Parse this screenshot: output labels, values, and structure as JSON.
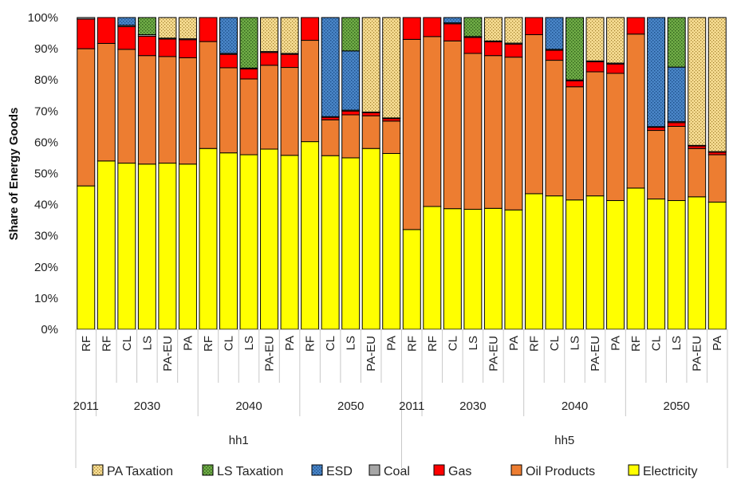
{
  "chart_data": {
    "type": "bar",
    "stacked": true,
    "title": "",
    "ylabel": "Share of Energy Goods",
    "xlabel": "",
    "ylim": [
      0,
      100
    ],
    "y_ticks": [
      "0%",
      "10%",
      "20%",
      "30%",
      "40%",
      "50%",
      "60%",
      "70%",
      "80%",
      "90%",
      "100%"
    ],
    "legend_position": "bottom",
    "groups": [
      {
        "label": "hh1",
        "years": [
          {
            "label": "2011",
            "scenarios": [
              "RF"
            ]
          },
          {
            "label": "2030",
            "scenarios": [
              "RF",
              "CL",
              "LS",
              "PA-EU",
              "PA"
            ]
          },
          {
            "label": "2040",
            "scenarios": [
              "RF",
              "CL",
              "LS",
              "PA-EU",
              "PA"
            ]
          },
          {
            "label": "2050",
            "scenarios": [
              "RF",
              "CL",
              "LS",
              "PA-EU",
              "PA"
            ]
          }
        ]
      },
      {
        "label": "hh5",
        "years": [
          {
            "label": "2011",
            "scenarios": [
              "RF"
            ]
          },
          {
            "label": "2030",
            "scenarios": [
              "RF",
              "CL",
              "LS",
              "PA-EU",
              "PA"
            ]
          },
          {
            "label": "2040",
            "scenarios": [
              "RF",
              "CL",
              "LS",
              "PA-EU",
              "PA"
            ]
          },
          {
            "label": "2050",
            "scenarios": [
              "RF",
              "CL",
              "LS",
              "PA-EU",
              "PA"
            ]
          }
        ]
      }
    ],
    "series": [
      {
        "name": "Electricity",
        "color": "#ffff00",
        "pattern": "solid",
        "values": [
          46,
          54,
          53.3,
          53,
          53.3,
          53,
          58,
          56.6,
          56,
          57.8,
          55.8,
          60.2,
          55.7,
          55,
          58,
          56.4,
          32,
          39.4,
          38.7,
          38.5,
          38.8,
          38.3,
          43.5,
          42.8,
          41.5,
          42.8,
          41.3,
          45.3,
          41.8,
          41.3,
          42.5,
          40.8
        ]
      },
      {
        "name": "Oil Products",
        "color": "#ed7d31",
        "pattern": "solid",
        "values": [
          44,
          37.7,
          36.5,
          34.8,
          34.2,
          34.1,
          34.3,
          27.3,
          24.3,
          26.9,
          28.2,
          32.5,
          11.5,
          13.8,
          10.5,
          10.4,
          61,
          54.5,
          53.8,
          50,
          49,
          49,
          51,
          43.5,
          36.3,
          39.8,
          40.8,
          49.4,
          22,
          23.8,
          15.5,
          15.2
        ]
      },
      {
        "name": "Gas",
        "color": "#ff0000",
        "pattern": "solid",
        "values": [
          9.5,
          8.3,
          7.3,
          6.2,
          5.6,
          5.8,
          7.7,
          4.3,
          3.2,
          4.1,
          4.2,
          7.3,
          0.8,
          1.2,
          1,
          0.8,
          7,
          6.1,
          5.5,
          5.1,
          4.4,
          4.2,
          5.5,
          3.2,
          1.9,
          3.2,
          3,
          5.3,
          1,
          1.2,
          0.8,
          0.8
        ]
      },
      {
        "name": "Coal",
        "color": "#a6a6a6",
        "pattern": "solid",
        "values": [
          0.5,
          0,
          0.4,
          0.5,
          0.3,
          0.3,
          0,
          0.3,
          0.3,
          0.3,
          0.3,
          0,
          0.2,
          0.3,
          0.2,
          0.2,
          0,
          0,
          0.3,
          0.3,
          0.3,
          0.3,
          0,
          0.3,
          0.3,
          0.3,
          0.3,
          0,
          0.2,
          0.3,
          0.2,
          0.2
        ]
      },
      {
        "name": "ESD",
        "color": "#4a86c8",
        "pattern": "dots",
        "values": [
          0,
          0,
          2.5,
          0,
          0,
          0,
          0,
          11.5,
          0,
          0,
          0,
          0,
          31.8,
          19,
          0,
          0,
          0,
          0,
          1.7,
          0,
          0,
          0,
          0,
          10.2,
          0,
          0,
          0,
          0,
          35,
          17.5,
          0,
          0
        ]
      },
      {
        "name": "LS Taxation",
        "color": "#70ad47",
        "pattern": "dots",
        "values": [
          0,
          0,
          0,
          5.5,
          0,
          0,
          0,
          0,
          16.2,
          0,
          0,
          0,
          0,
          10.7,
          0,
          0,
          0,
          0,
          0,
          6.1,
          0,
          0,
          0,
          0,
          20,
          0,
          0,
          0,
          0,
          15.9,
          0,
          0
        ]
      },
      {
        "name": "PA Taxation",
        "color": "#f4d27a",
        "pattern": "dots",
        "values": [
          0,
          0,
          0,
          0,
          6.6,
          6.8,
          0,
          0,
          0,
          10.9,
          11.5,
          0,
          0,
          0,
          30.3,
          32.2,
          0,
          0,
          0,
          0,
          7.5,
          8.2,
          0,
          0,
          0,
          13.9,
          14.6,
          0,
          0,
          0,
          41,
          43
        ]
      }
    ],
    "legend_order": [
      "PA Taxation",
      "LS Taxation",
      "ESD",
      "Coal",
      "Gas",
      "Oil Products",
      "Electricity"
    ]
  }
}
